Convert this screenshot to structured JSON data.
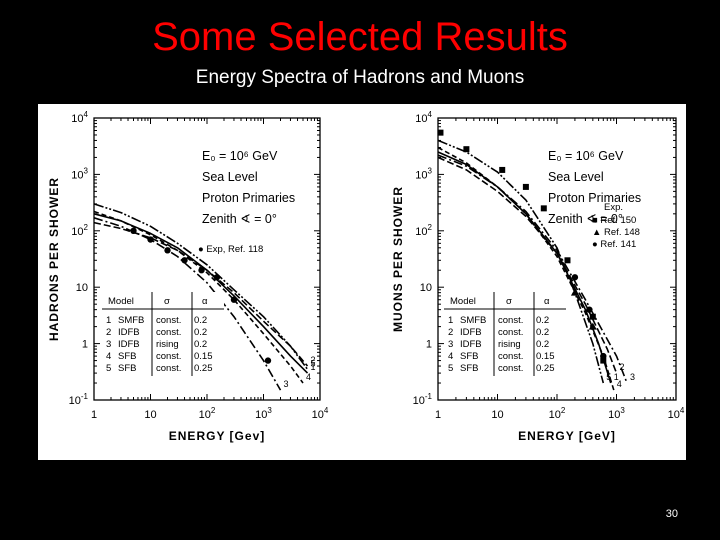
{
  "slide": {
    "title": "Some Selected Results",
    "subtitle": "Energy Spectra of  Hadrons and Muons",
    "page_number": "30"
  },
  "chart_data": [
    {
      "type": "line",
      "id": "hadrons",
      "xscale": "log",
      "yscale": "log",
      "xlim": [
        1,
        10000
      ],
      "ylim": [
        0.1,
        10000
      ],
      "xticks": [
        "1",
        "10",
        "10^2",
        "10^3",
        "10^4"
      ],
      "yticks": [
        "10^-1",
        "1",
        "10",
        "10^2",
        "10^3",
        "10^4"
      ],
      "xlabel": "ENERGY  [Gev]",
      "ylabel": "HADRONS  PER  SHOWER",
      "annotations": [
        "E₀ = 10⁶ GeV",
        "Sea Level",
        "Proton Primaries",
        "Zenith ∢ = 0°"
      ],
      "legend_marker": "● Exp, Ref. 118",
      "table": {
        "headers": [
          "Model",
          "σ",
          "α"
        ],
        "rows": [
          [
            "1",
            "SMFB",
            "const.",
            "0.2"
          ],
          [
            "2",
            "IDFB",
            "const.",
            "0.2"
          ],
          [
            "3",
            "IDFB",
            "rising",
            "0.2"
          ],
          [
            "4",
            "SFB",
            "const.",
            "0.15"
          ],
          [
            "5",
            "SFB",
            "const.",
            "0.25"
          ]
        ]
      },
      "series": [
        {
          "name": "1",
          "x": [
            1,
            3,
            10,
            30,
            100,
            300,
            1000,
            3000,
            6000
          ],
          "y": [
            200,
            150,
            90,
            50,
            20,
            7,
            2,
            0.6,
            0.3
          ]
        },
        {
          "name": "2",
          "x": [
            1,
            3,
            10,
            30,
            100,
            300,
            1000,
            3000,
            6000
          ],
          "y": [
            140,
            110,
            75,
            45,
            20,
            8,
            2.5,
            0.9,
            0.4
          ]
        },
        {
          "name": "3",
          "x": [
            1,
            3,
            10,
            30,
            100,
            300,
            1000,
            2000
          ],
          "y": [
            170,
            120,
            70,
            35,
            12,
            3,
            0.5,
            0.15
          ]
        },
        {
          "name": "4",
          "x": [
            1,
            3,
            10,
            30,
            100,
            300,
            1000,
            3000,
            5000
          ],
          "y": [
            220,
            150,
            85,
            45,
            18,
            6,
            1.5,
            0.4,
            0.2
          ]
        },
        {
          "name": "5",
          "x": [
            1,
            3,
            10,
            30,
            100,
            300,
            1000,
            3000,
            6000
          ],
          "y": [
            300,
            210,
            120,
            60,
            25,
            9,
            3,
            0.9,
            0.35
          ]
        }
      ],
      "points": {
        "name": "Exp, Ref. 118",
        "x": [
          5,
          10,
          20,
          40,
          80,
          150,
          300,
          1200
        ],
        "y": [
          100,
          70,
          45,
          30,
          20,
          15,
          6,
          0.5
        ]
      }
    },
    {
      "type": "line",
      "id": "muons",
      "xscale": "log",
      "yscale": "log",
      "xlim": [
        1,
        10000
      ],
      "ylim": [
        0.1,
        10000
      ],
      "xticks": [
        "1",
        "10",
        "10^2",
        "10^3",
        "10^4"
      ],
      "yticks": [
        "10^-1",
        "1",
        "10",
        "10^2",
        "10^3",
        "10^4"
      ],
      "xlabel": "ENERGY  [GeV]",
      "ylabel": "MUONS  PER  SHOWER",
      "annotations": [
        "E₀ = 10⁶ GeV",
        "Sea Level",
        "Proton Primaries",
        "Zenith ∢ = 0°"
      ],
      "legend": {
        "title": "Exp.",
        "entries": [
          "■ Ref. 150",
          "▲ Ref. 148",
          "● Ref. 141"
        ]
      },
      "table": {
        "headers": [
          "Model",
          "σ",
          "α"
        ],
        "rows": [
          [
            "1",
            "SMFB",
            "const.",
            "0.2"
          ],
          [
            "2",
            "IDFB",
            "const.",
            "0.2"
          ],
          [
            "3",
            "IDFB",
            "rising",
            "0.2"
          ],
          [
            "4",
            "SFB",
            "const.",
            "0.15"
          ],
          [
            "5",
            "SFB",
            "const.",
            "0.25"
          ]
        ]
      },
      "series": [
        {
          "name": "1",
          "x": [
            1,
            3,
            10,
            30,
            100,
            300,
            500,
            800
          ],
          "y": [
            2500,
            1500,
            600,
            200,
            40,
            4,
            1,
            0.2
          ]
        },
        {
          "name": "2",
          "x": [
            1,
            3,
            10,
            30,
            100,
            300,
            700,
            1000
          ],
          "y": [
            2000,
            1200,
            500,
            180,
            40,
            5,
            0.8,
            0.3
          ]
        },
        {
          "name": "3",
          "x": [
            1,
            3,
            10,
            30,
            100,
            300,
            1000,
            1500
          ],
          "y": [
            2200,
            1400,
            600,
            220,
            45,
            6,
            0.6,
            0.2
          ]
        },
        {
          "name": "4",
          "x": [
            1,
            3,
            10,
            30,
            100,
            300,
            600,
            900
          ],
          "y": [
            3000,
            1600,
            600,
            200,
            35,
            3.5,
            0.6,
            0.15
          ]
        },
        {
          "name": "5",
          "x": [
            1,
            3,
            10,
            30,
            100,
            200,
            400,
            600
          ],
          "y": [
            4000,
            2500,
            1100,
            350,
            50,
            8,
            1,
            0.2
          ]
        }
      ],
      "points_ref150": {
        "name": "Ref. 150",
        "x": [
          1.1,
          3,
          12,
          30,
          60,
          150,
          400,
          600
        ],
        "y": [
          5500,
          2800,
          1200,
          600,
          250,
          30,
          3,
          0.5
        ]
      },
      "points_ref148": {
        "name": "Ref. 148",
        "x": [
          200,
          400
        ],
        "y": [
          8,
          2
        ]
      },
      "points_ref141": {
        "name": "Ref. 141",
        "x": [
          200,
          350,
          600
        ],
        "y": [
          15,
          4,
          0.6
        ]
      }
    }
  ]
}
